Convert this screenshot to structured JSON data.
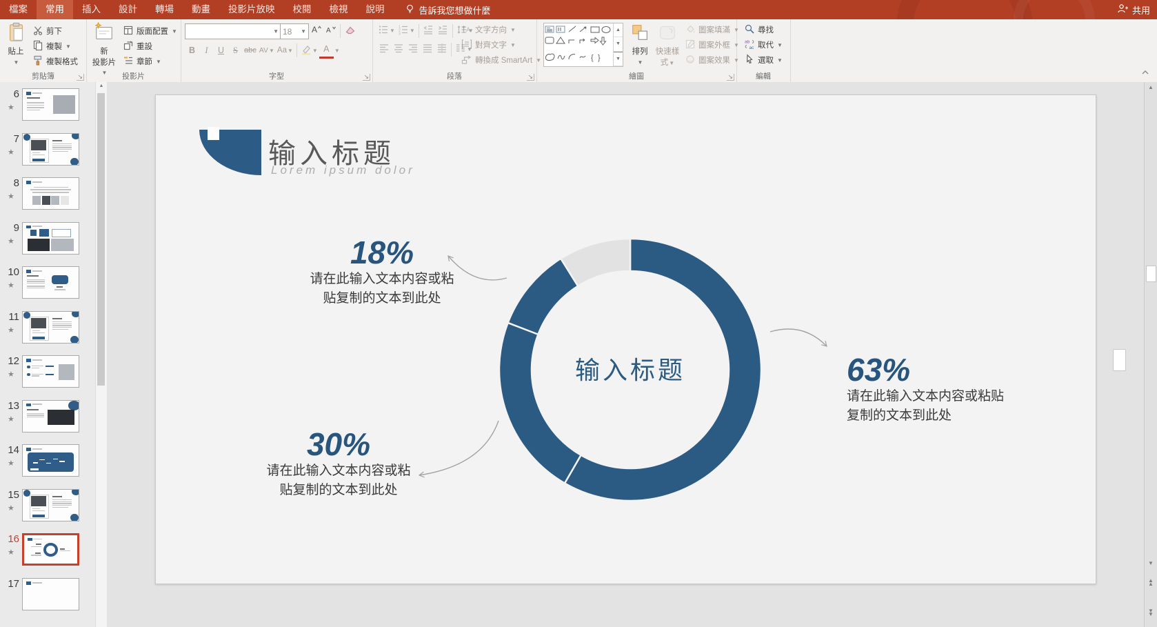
{
  "titlebar": {
    "tabs": [
      {
        "label": "檔案",
        "active": false
      },
      {
        "label": "常用",
        "active": true
      },
      {
        "label": "插入",
        "active": false
      },
      {
        "label": "設計",
        "active": false
      },
      {
        "label": "轉場",
        "active": false
      },
      {
        "label": "動畫",
        "active": false
      },
      {
        "label": "投影片放映",
        "active": false
      },
      {
        "label": "校閱",
        "active": false
      },
      {
        "label": "檢視",
        "active": false
      },
      {
        "label": "說明",
        "active": false
      }
    ],
    "tell_me": "告訴我您想做什麼",
    "share": "共用"
  },
  "ribbon": {
    "clipboard": {
      "label": "剪貼簿",
      "paste": "貼上",
      "cut": "剪下",
      "copy": "複製",
      "format_painter": "複製格式"
    },
    "slides": {
      "label": "投影片",
      "new_slide_l1": "新",
      "new_slide_l2": "投影片",
      "layout": "版面配置",
      "reset": "重設",
      "section": "章節"
    },
    "font": {
      "label": "字型",
      "size": "18",
      "bold": "B",
      "italic": "I",
      "underline": "U",
      "strike": "S",
      "abc": "abc",
      "av": "AV",
      "aa": "Aa",
      "color_a": "A"
    },
    "paragraph": {
      "label": "段落",
      "text_direction": "文字方向",
      "align_text": "對齊文字",
      "smartart": "轉換成 SmartArt"
    },
    "drawing": {
      "label": "繪圖",
      "arrange": "排列",
      "quick_l1": "快速樣",
      "quick_l2": "式",
      "shape_fill": "圖案填滿",
      "shape_outline": "圖案外框",
      "shape_effects": "圖案效果"
    },
    "editing": {
      "label": "編輯",
      "find": "尋找",
      "replace": "取代",
      "select": "選取"
    }
  },
  "slide_panel": {
    "slides": [
      {
        "num": "6",
        "starred": true,
        "selected": false,
        "variant": "photo"
      },
      {
        "num": "7",
        "starred": true,
        "selected": false,
        "variant": "laptop"
      },
      {
        "num": "8",
        "starred": true,
        "selected": false,
        "variant": "gallery"
      },
      {
        "num": "9",
        "starred": true,
        "selected": false,
        "variant": "tiles"
      },
      {
        "num": "10",
        "starred": true,
        "selected": false,
        "variant": "card"
      },
      {
        "num": "11",
        "starred": true,
        "selected": false,
        "variant": "laptop"
      },
      {
        "num": "12",
        "starred": true,
        "selected": false,
        "variant": "list"
      },
      {
        "num": "13",
        "starred": true,
        "selected": false,
        "variant": "photo2"
      },
      {
        "num": "14",
        "starred": true,
        "selected": false,
        "variant": "chartd"
      },
      {
        "num": "15",
        "starred": true,
        "selected": false,
        "variant": "laptop"
      },
      {
        "num": "16",
        "starred": true,
        "selected": true,
        "variant": "donutm"
      },
      {
        "num": "17",
        "starred": false,
        "selected": false,
        "variant": "blank"
      }
    ]
  },
  "slide": {
    "title": "输入标题",
    "subtitle": "Lorem ipsum dolor"
  },
  "chart_data": {
    "type": "donut",
    "center_label": "输入标题",
    "unit": "%",
    "segments": [
      {
        "label": "63%",
        "value": 63,
        "start_deg": 0,
        "end_deg": 210,
        "color": "#2b5a83"
      },
      {
        "label": "30%",
        "value": 30,
        "start_deg": 210,
        "end_deg": 291,
        "color": "#2b5a83"
      },
      {
        "label": "18%",
        "value": 18,
        "start_deg": 291,
        "end_deg": 328,
        "color": "#2b5a83"
      },
      {
        "label": "",
        "value": null,
        "start_deg": 328,
        "end_deg": 360,
        "color": "#e2e2e2"
      }
    ],
    "callouts": [
      {
        "pct": "18%",
        "line1": "请在此输入文本内容或粘",
        "line2": "贴复制的文本到此处"
      },
      {
        "pct": "30%",
        "line1": "请在此输入文本内容或粘",
        "line2": "贴复制的文本到此处"
      },
      {
        "pct": "63%",
        "line1": "请在此输入文本内容或粘贴",
        "line2": "复制的文本到此处"
      }
    ]
  },
  "colors": {
    "brand_red": "#b23e24",
    "accent_blue": "#2b5a83",
    "gray_slice": "#e2e2e2"
  }
}
